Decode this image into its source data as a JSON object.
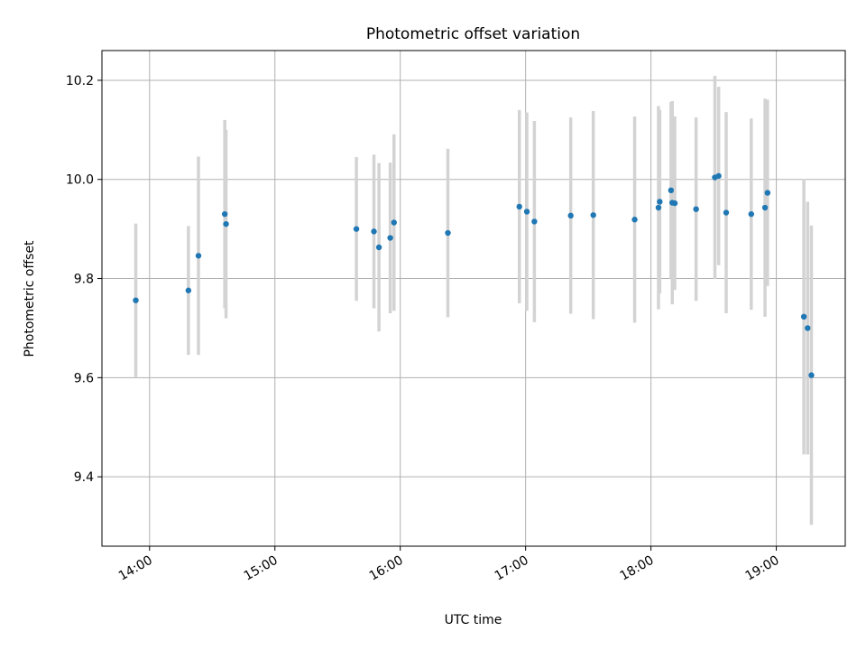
{
  "chart_data": {
    "type": "scatter",
    "title": "Photometric offset variation",
    "xlabel": "UTC time",
    "ylabel": "Photometric offset",
    "xlim": [
      13.62,
      19.55
    ],
    "ylim": [
      9.26,
      10.26
    ],
    "xticks": [
      {
        "value": 14,
        "label": "14:00"
      },
      {
        "value": 15,
        "label": "15:00"
      },
      {
        "value": 16,
        "label": "16:00"
      },
      {
        "value": 17,
        "label": "17:00"
      },
      {
        "value": 18,
        "label": "18:00"
      },
      {
        "value": 19,
        "label": "19:00"
      }
    ],
    "yticks": [
      {
        "value": 9.4,
        "label": "9.4"
      },
      {
        "value": 9.6,
        "label": "9.6"
      },
      {
        "value": 9.8,
        "label": "9.8"
      },
      {
        "value": 10.0,
        "label": "10.0"
      },
      {
        "value": 10.2,
        "label": "10.2"
      }
    ],
    "grid": true,
    "point_color": "#1f77b4",
    "errorbar_color": "#d3d3d3",
    "points": [
      {
        "x": 13.89,
        "y": 9.756,
        "err": 0.155
      },
      {
        "x": 14.31,
        "y": 9.776,
        "err": 0.13
      },
      {
        "x": 14.39,
        "y": 9.846,
        "err": 0.2
      },
      {
        "x": 14.6,
        "y": 9.93,
        "err": 0.19
      },
      {
        "x": 14.61,
        "y": 9.91,
        "err": 0.19
      },
      {
        "x": 15.65,
        "y": 9.9,
        "err": 0.145
      },
      {
        "x": 15.79,
        "y": 9.895,
        "err": 0.155
      },
      {
        "x": 15.83,
        "y": 9.863,
        "err": 0.17
      },
      {
        "x": 15.92,
        "y": 9.882,
        "err": 0.152
      },
      {
        "x": 15.95,
        "y": 9.913,
        "err": 0.178
      },
      {
        "x": 16.38,
        "y": 9.892,
        "err": 0.17
      },
      {
        "x": 16.95,
        "y": 9.945,
        "err": 0.195
      },
      {
        "x": 17.01,
        "y": 9.935,
        "err": 0.2
      },
      {
        "x": 17.07,
        "y": 9.915,
        "err": 0.203
      },
      {
        "x": 17.36,
        "y": 9.927,
        "err": 0.198
      },
      {
        "x": 17.54,
        "y": 9.928,
        "err": 0.21
      },
      {
        "x": 17.87,
        "y": 9.919,
        "err": 0.208
      },
      {
        "x": 18.06,
        "y": 9.943,
        "err": 0.205
      },
      {
        "x": 18.07,
        "y": 9.955,
        "err": 0.185
      },
      {
        "x": 18.16,
        "y": 9.978,
        "err": 0.178
      },
      {
        "x": 18.17,
        "y": 9.953,
        "err": 0.205
      },
      {
        "x": 18.19,
        "y": 9.952,
        "err": 0.175
      },
      {
        "x": 18.36,
        "y": 9.94,
        "err": 0.185
      },
      {
        "x": 18.51,
        "y": 10.004,
        "err": 0.205
      },
      {
        "x": 18.54,
        "y": 10.007,
        "err": 0.18
      },
      {
        "x": 18.6,
        "y": 9.933,
        "err": 0.203
      },
      {
        "x": 18.8,
        "y": 9.93,
        "err": 0.193
      },
      {
        "x": 18.91,
        "y": 9.943,
        "err": 0.22
      },
      {
        "x": 18.93,
        "y": 9.973,
        "err": 0.188
      },
      {
        "x": 19.22,
        "y": 9.723,
        "err": 0.278
      },
      {
        "x": 19.25,
        "y": 9.7,
        "err": 0.255
      },
      {
        "x": 19.28,
        "y": 9.605,
        "err": 0.302
      }
    ]
  }
}
